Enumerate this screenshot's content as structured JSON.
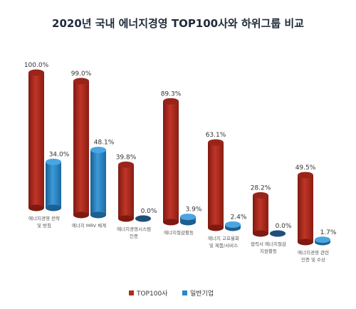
{
  "title": "2020년 국내 에너지경영 TOP100사와 하위그룹 비교",
  "colors": {
    "top100": "#b22a1e",
    "general": "#2a86c9"
  },
  "chart_data": {
    "type": "bar",
    "title": "2020년 국내 에너지경영 TOP100사와 하위그룹 비교",
    "categories": [
      [
        "에너지경영 전략",
        "및 방침"
      ],
      [
        "에너지 MRV 체계"
      ],
      [
        "에너지경영시스템",
        "인증"
      ],
      [
        "에너지절감활동"
      ],
      [
        "에너지 고효율화",
        "및 제품/서비스"
      ],
      [
        "협력사 에너지절감",
        "지원활동"
      ],
      [
        "에너지경영 관련",
        "인증 및 수상"
      ]
    ],
    "series": [
      {
        "name": "TOP100사",
        "values": [
          100.0,
          99.0,
          39.8,
          89.3,
          63.1,
          28.2,
          49.5
        ],
        "labels": [
          "100.0%",
          "99.0%",
          "39.8%",
          "89.3%",
          "63.1%",
          "28.2%",
          "49.5%"
        ]
      },
      {
        "name": "일반기업",
        "values": [
          34.0,
          48.1,
          0.0,
          3.9,
          2.4,
          0.0,
          1.7
        ],
        "labels": [
          "34.0%",
          "48.1%",
          "0.0%",
          "3.9%",
          "2.4%",
          "0.0%",
          "1.7%"
        ]
      }
    ],
    "ylim": [
      0,
      100
    ],
    "legend_position": "bottom"
  }
}
